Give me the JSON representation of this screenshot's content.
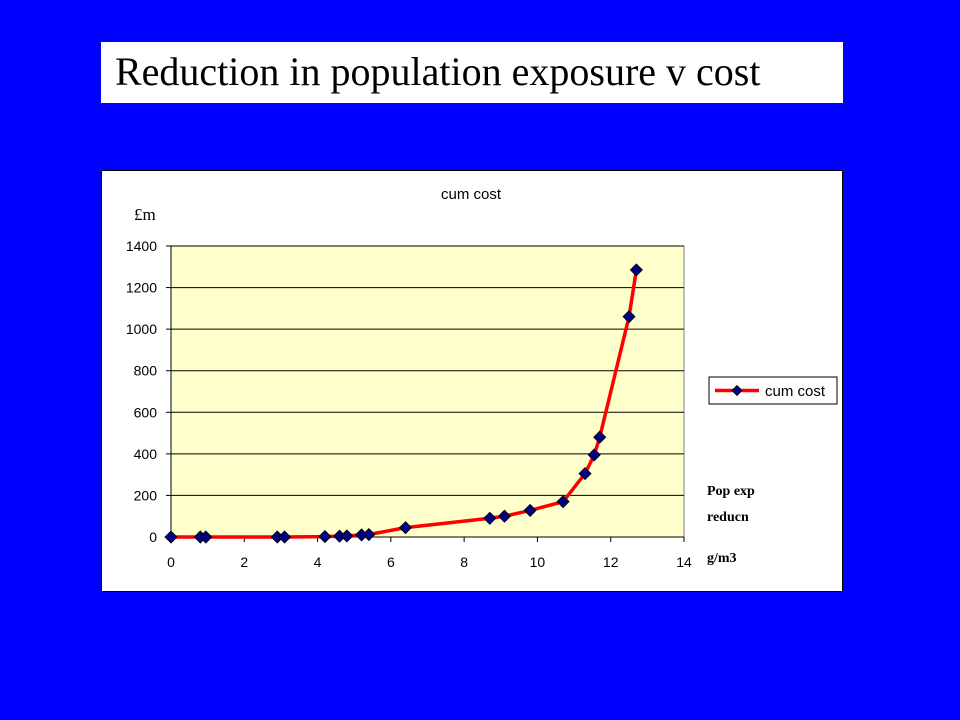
{
  "slide": {
    "title": "Reduction in population exposure v cost"
  },
  "colors": {
    "background": "#0000ff",
    "plot_area": "#ffffcc",
    "line": "#ff0000",
    "marker": "#000080"
  },
  "chart_data": {
    "type": "line",
    "title": "cum cost",
    "ylabel": "£m",
    "xlabel_lines": [
      "Pop exp",
      "reducn",
      "g/m3"
    ],
    "xlim": [
      0,
      14
    ],
    "ylim": [
      0,
      1400
    ],
    "x_ticks": [
      0,
      2,
      4,
      6,
      8,
      10,
      12,
      14
    ],
    "y_ticks": [
      0,
      200,
      400,
      600,
      800,
      1000,
      1200,
      1400
    ],
    "grid": "horizontal",
    "legend_position": "right",
    "series": [
      {
        "name": "cum cost",
        "x": [
          0,
          0.8,
          0.95,
          2.9,
          3.1,
          4.2,
          4.6,
          4.8,
          5.2,
          5.4,
          6.4,
          8.7,
          9.1,
          9.8,
          10.7,
          11.3,
          11.55,
          11.7,
          12.5,
          12.7
        ],
        "y": [
          0,
          0,
          0,
          0,
          0,
          2,
          4,
          5,
          10,
          12,
          45,
          90,
          100,
          128,
          170,
          305,
          395,
          480,
          1060,
          1285
        ]
      }
    ]
  }
}
